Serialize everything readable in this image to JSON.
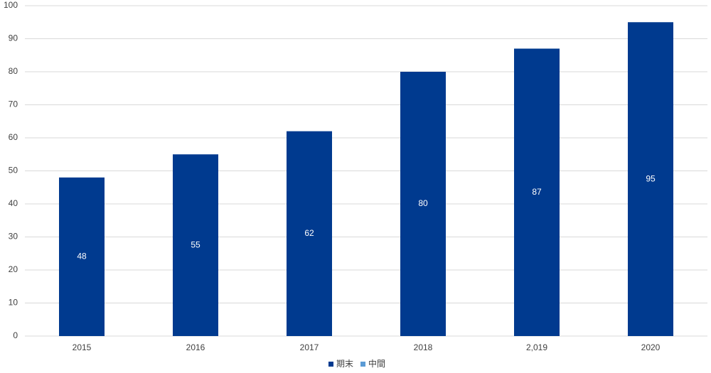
{
  "chart_data": {
    "type": "bar",
    "categories": [
      "2015",
      "2016",
      "2017",
      "2018",
      "2,019",
      "2020"
    ],
    "series": [
      {
        "name": "期末",
        "color": "#003a8f",
        "values": [
          48,
          55,
          62,
          80,
          87,
          95
        ]
      },
      {
        "name": "中間",
        "color": "#5b9bd5",
        "values": [
          null,
          null,
          null,
          null,
          null,
          null
        ]
      }
    ],
    "ylim": [
      0,
      100
    ],
    "yticks": [
      0,
      10,
      20,
      30,
      40,
      50,
      60,
      70,
      80,
      90,
      100
    ],
    "grid": true,
    "legend": "bottom"
  }
}
